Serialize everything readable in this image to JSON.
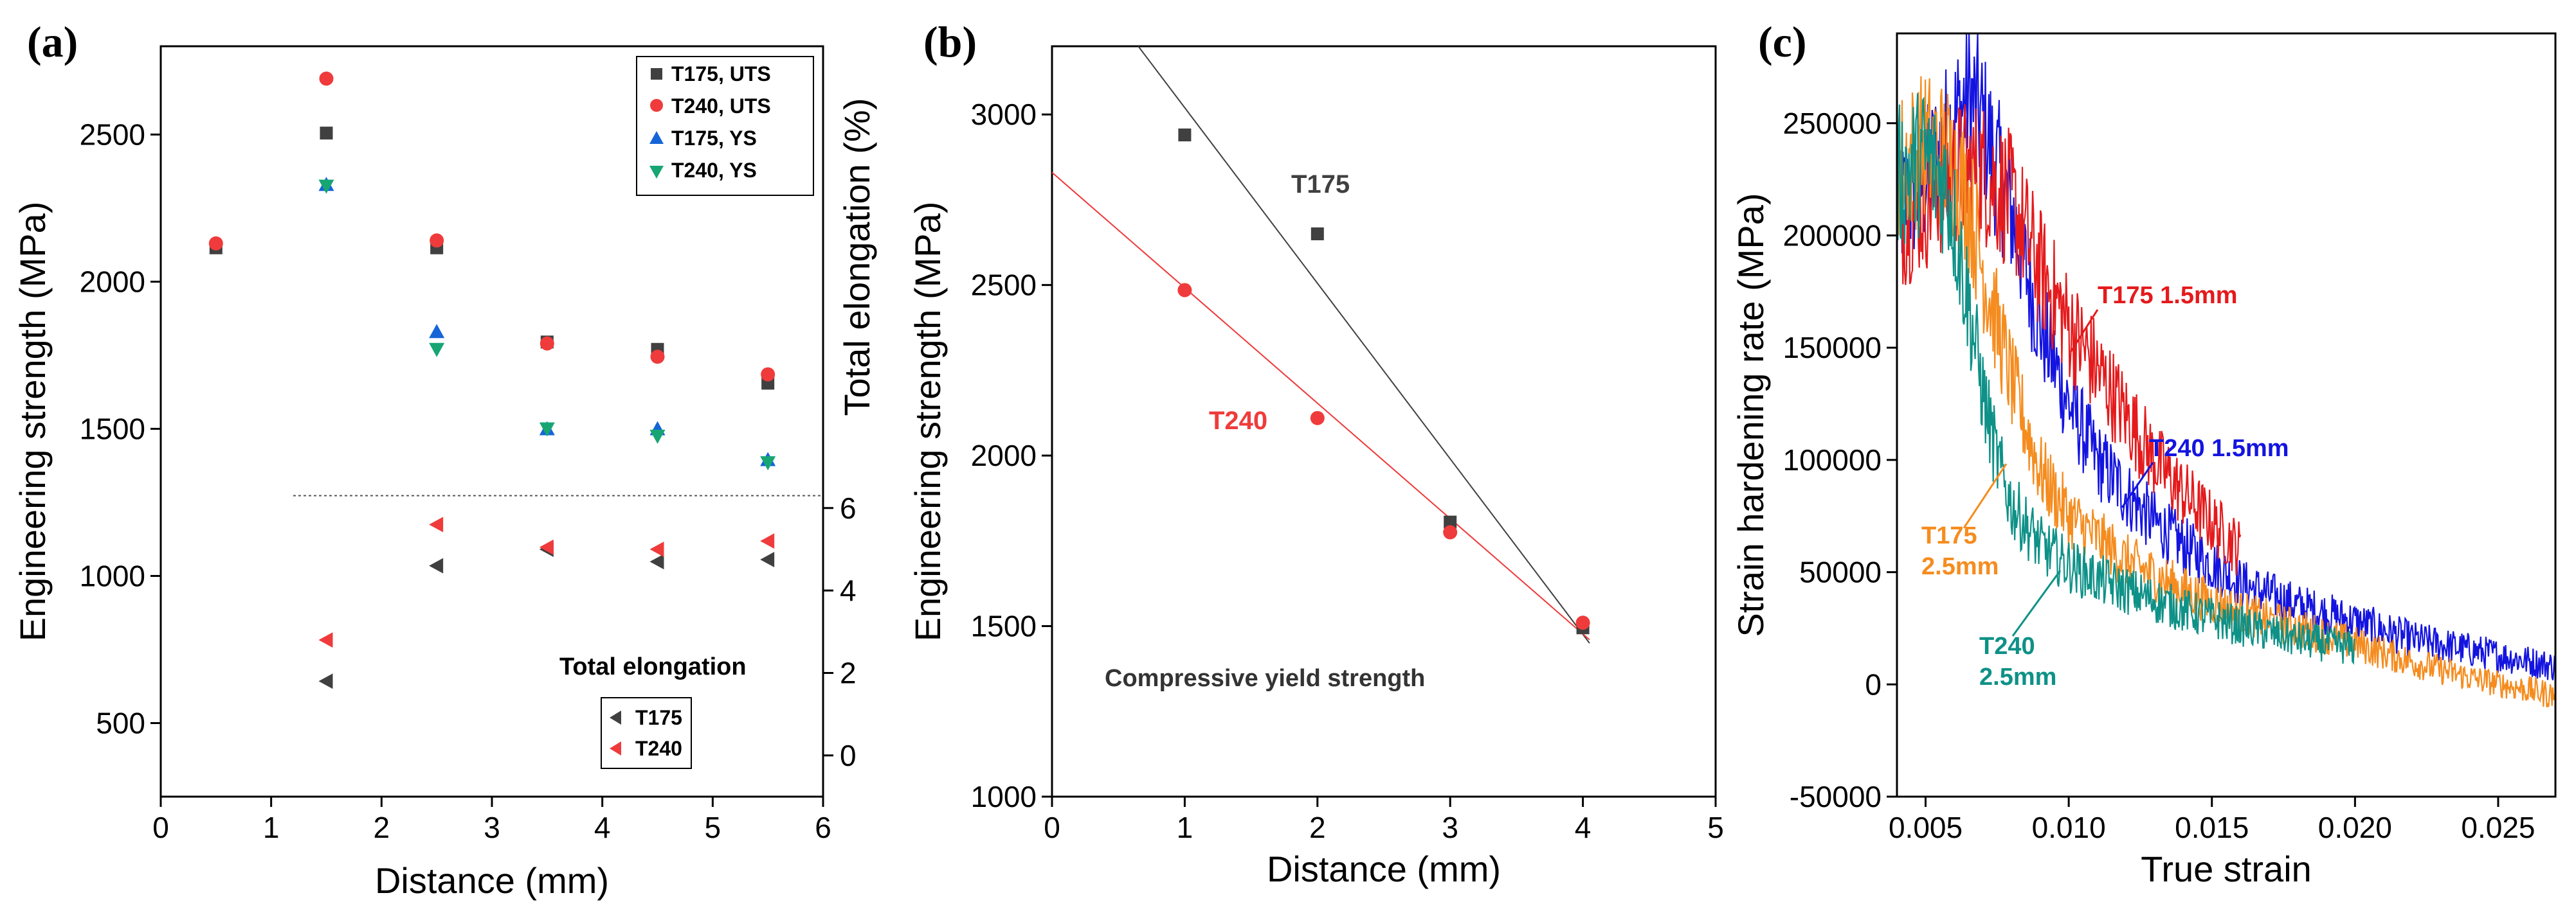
{
  "colors": {
    "black": "#404040",
    "red": "#ef3b3b",
    "blue": "#1565d8",
    "green": "#17a673",
    "orange": "#f58c1f",
    "teal": "#0e9187",
    "curve_blue": "#1414e0",
    "curve_red": "#e41a1c"
  },
  "chart_data": [
    {
      "panel_label": "(a)",
      "type": "scatter",
      "title": "",
      "xlabel": "Distance (mm)",
      "ylabel": "Engineering strength (MPa)",
      "y2label": "Total elongation (%)",
      "xlim": [
        0,
        6
      ],
      "ylim": [
        250,
        2800
      ],
      "y2lim": [
        -1,
        17.2
      ],
      "xticks": [
        "0",
        "1",
        "2",
        "3",
        "4",
        "5",
        "6"
      ],
      "yticks": [
        "500",
        "1000",
        "1500",
        "2000",
        "2500"
      ],
      "y2ticks": [
        "0",
        "2",
        "4",
        "6"
      ],
      "legend_location": "top-right",
      "series": [
        {
          "name": "T175, UTS",
          "marker": "square",
          "color": "#404040",
          "x": [
            0.5,
            1.5,
            2.5,
            3.5,
            4.5,
            5.5
          ],
          "y": [
            2115,
            2505,
            2115,
            1795,
            1770,
            1655
          ]
        },
        {
          "name": "T240, UTS",
          "marker": "circle",
          "color": "#ef3b3b",
          "x": [
            0.5,
            1.5,
            2.5,
            3.5,
            4.5,
            5.5
          ],
          "y": [
            2130,
            2690,
            2140,
            1790,
            1745,
            1685
          ]
        },
        {
          "name": "T175, YS",
          "marker": "triangle-up",
          "color": "#1565d8",
          "x": [
            1.5,
            2.5,
            3.5,
            4.5,
            5.5
          ],
          "y": [
            2330,
            1830,
            1500,
            1500,
            1395
          ]
        },
        {
          "name": "T240, YS",
          "marker": "triangle-down",
          "color": "#17a673",
          "x": [
            1.5,
            2.5,
            3.5,
            4.5,
            5.5
          ],
          "y": [
            2325,
            1770,
            1500,
            1475,
            1385
          ]
        }
      ],
      "elongation_legend_title": "Total elongation",
      "elongation_series": [
        {
          "name": "T175",
          "marker": "triangle-left",
          "color": "#404040",
          "x": [
            1.5,
            2.5,
            3.5,
            4.5,
            5.5
          ],
          "y": [
            1.8,
            4.6,
            5.0,
            4.7,
            4.75
          ]
        },
        {
          "name": "T240",
          "marker": "triangle-left",
          "color": "#ef3b3b",
          "x": [
            1.5,
            2.5,
            3.5,
            4.5,
            5.5
          ],
          "y": [
            2.8,
            5.6,
            5.05,
            5.0,
            5.2
          ]
        }
      ],
      "reference_line": {
        "y2": 6.3,
        "x_from": 1.2,
        "x_to": 6,
        "style": "dotted"
      }
    },
    {
      "panel_label": "(b)",
      "type": "scatter",
      "title": "",
      "xlabel": "Distance (mm)",
      "ylabel": "Engineering strength (MPa)",
      "xlim": [
        0,
        5
      ],
      "ylim": [
        1000,
        3200
      ],
      "xticks": [
        "0",
        "1",
        "2",
        "3",
        "4",
        "5"
      ],
      "yticks": [
        "1000",
        "1500",
        "2000",
        "2500",
        "3000"
      ],
      "series": [
        {
          "name": "T175",
          "marker": "square",
          "color": "#404040",
          "x": [
            1,
            2,
            3,
            4
          ],
          "y": [
            2940,
            2650,
            1805,
            1495
          ],
          "fit": {
            "x": [
              0.65,
              4.05
            ],
            "y": [
              3200,
              1450
            ]
          }
        },
        {
          "name": "T240",
          "marker": "circle",
          "color": "#ef3b3b",
          "x": [
            1,
            2,
            3,
            4
          ],
          "y": [
            2485,
            2110,
            1775,
            1510
          ],
          "fit": {
            "x": [
              0,
              4.05
            ],
            "y": [
              2830,
              1460
            ]
          }
        }
      ],
      "annotation": "Compressive yield strength"
    },
    {
      "panel_label": "(c)",
      "type": "line",
      "title": "",
      "xlabel": "True strain",
      "ylabel": "Strain hardening rate (MPa)",
      "xlim": [
        0.004,
        0.027
      ],
      "ylim": [
        -50000,
        290000
      ],
      "xticks": [
        "0.005",
        "0.010",
        "0.015",
        "0.020",
        "0.025"
      ],
      "yticks": [
        "-50000",
        "0",
        "50000",
        "100000",
        "150000",
        "200000",
        "250000"
      ],
      "series": [
        {
          "name": "T240 1.5mm",
          "color": "#1414e0",
          "x": [
            0.004,
            0.005,
            0.006,
            0.0065,
            0.007,
            0.008,
            0.009,
            0.01,
            0.011,
            0.012,
            0.013,
            0.014,
            0.016,
            0.018,
            0.02,
            0.022,
            0.025,
            0.027
          ],
          "y": [
            210000,
            225000,
            250000,
            262000,
            250000,
            210000,
            160000,
            125000,
            100000,
            85000,
            72000,
            62000,
            45000,
            35000,
            28000,
            20000,
            13000,
            8000
          ]
        },
        {
          "name": "T175 1.5mm",
          "color": "#e41a1c",
          "x": [
            0.004,
            0.005,
            0.006,
            0.007,
            0.008,
            0.009,
            0.01,
            0.011,
            0.012,
            0.013,
            0.014,
            0.015,
            0.016
          ],
          "y": [
            205000,
            215000,
            228000,
            228000,
            215000,
            185000,
            160000,
            140000,
            120000,
            100000,
            85000,
            72000,
            60000
          ]
        },
        {
          "name": "T175 2.5mm",
          "color": "#f58c1f",
          "x": [
            0.004,
            0.005,
            0.0058,
            0.0065,
            0.007,
            0.008,
            0.009,
            0.01,
            0.012,
            0.014,
            0.016,
            0.018,
            0.02,
            0.022,
            0.024,
            0.027
          ],
          "y": [
            230000,
            240000,
            235000,
            215000,
            185000,
            135000,
            95000,
            75000,
            55000,
            42000,
            32000,
            25000,
            18000,
            10000,
            3000,
            -5000
          ]
        },
        {
          "name": "T240 2.5mm",
          "color": "#0e9187",
          "x": [
            0.004,
            0.005,
            0.0058,
            0.0065,
            0.007,
            0.0075,
            0.008,
            0.009,
            0.01,
            0.011,
            0.012,
            0.014,
            0.016,
            0.018,
            0.02
          ],
          "y": [
            225000,
            235000,
            220000,
            170000,
            130000,
            100000,
            80000,
            62000,
            53000,
            47000,
            42000,
            33000,
            26000,
            20000,
            16000
          ]
        }
      ],
      "labels": [
        {
          "text": "T175 1.5mm",
          "color": "#e41a1c"
        },
        {
          "text": "T240 1.5mm",
          "color": "#1414e0"
        },
        {
          "text": "T175",
          "color": "#f58c1f"
        },
        {
          "text": "2.5mm",
          "color": "#f58c1f"
        },
        {
          "text": "T240",
          "color": "#0e9187"
        },
        {
          "text": "2.5mm",
          "color": "#0e9187"
        }
      ]
    }
  ]
}
